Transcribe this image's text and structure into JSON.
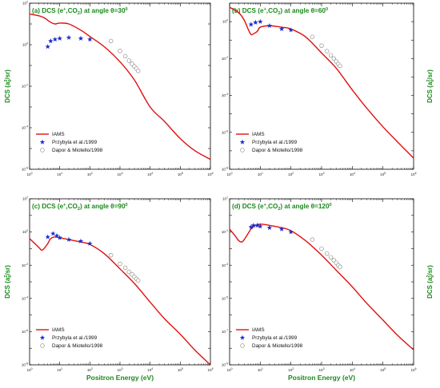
{
  "figure": {
    "xlabel": "Positron Energy (eV)",
    "ylabel_left": "DCS (a",
    "ylabel_sub": "0",
    "ylabel_sup": "2",
    "ylabel_end": "/sr)"
  },
  "legend": {
    "iams": "IAMS",
    "przybyla": "Przybyla et al./1999",
    "dapor": "Dapor & Miotello/1998"
  },
  "colors": {
    "iams": "#e01010",
    "przybyla": "#1a2fcf",
    "dapor": "#888888",
    "label": "#1a8a1a"
  },
  "chart_data": [
    {
      "type": "line",
      "title": "(a) DCS (e+,CO2) at angle θ=30°",
      "title_parts": {
        "pre": "(a) DCS (e",
        "sup1": "+",
        "mid": ",CO",
        "sub": "2",
        "post": ") at angle θ=30",
        "deg": "0"
      },
      "xscale": "log",
      "yscale": "log",
      "xlim": [
        1,
        1000000
      ],
      "ylim": [
        1e-06,
        100
      ],
      "x_ticks": [
        "10^0",
        "10^1",
        "10^2",
        "10^3",
        "10^4",
        "10^5",
        "10^6"
      ],
      "y_ticks": [
        "10^-6",
        "10^-4",
        "10^-2",
        "10^0",
        "10^2"
      ],
      "series": [
        {
          "name": "IAMS",
          "kind": "line",
          "x": [
            1,
            2,
            3,
            5,
            7,
            10,
            20,
            50,
            100,
            300,
            1000,
            3000,
            10000,
            30000,
            100000,
            300000,
            1000000
          ],
          "y": [
            30,
            25,
            20,
            12,
            10,
            11,
            10,
            5,
            2.5,
            0.8,
            0.15,
            0.02,
            0.001,
            0.0002,
            3e-05,
            8e-06,
            3e-06
          ]
        },
        {
          "name": "Przybyla et al./1999",
          "kind": "star",
          "x": [
            4,
            5,
            7,
            10,
            20,
            50,
            100
          ],
          "y": [
            0.8,
            1.5,
            1.8,
            2.0,
            2.2,
            2.0,
            1.8
          ]
        },
        {
          "name": "Dapor & Miotello/1998",
          "kind": "circle",
          "x": [
            500,
            1000,
            1500,
            2000,
            2500,
            3000,
            3500,
            4000
          ],
          "y": [
            1.5,
            0.5,
            0.28,
            0.17,
            0.12,
            0.09,
            0.07,
            0.055
          ]
        }
      ]
    },
    {
      "type": "line",
      "title": "(b) DCS (e+,CO2) at angle θ=60°",
      "title_parts": {
        "pre": "(b) DCS (e",
        "sup1": "+",
        "mid": ",CO",
        "sub": "2",
        "post": ") at angle θ=60",
        "deg": "0"
      },
      "xscale": "log",
      "yscale": "log",
      "xlim": [
        1,
        1000000
      ],
      "ylim": [
        1e-08,
        10
      ],
      "x_ticks": [
        "10^0",
        "10^1",
        "10^2",
        "10^3",
        "10^4",
        "10^5",
        "10^6"
      ],
      "y_ticks": [
        "10^-8",
        "10^-6",
        "10^-4",
        "10^-2",
        "10^0"
      ],
      "series": [
        {
          "name": "IAMS",
          "kind": "line",
          "x": [
            1,
            2,
            3,
            4,
            5,
            6,
            8,
            10,
            20,
            50,
            100,
            300,
            1000,
            3000,
            10000,
            30000,
            100000,
            300000,
            1000000
          ],
          "y": [
            6,
            3,
            1.2,
            0.4,
            0.2,
            0.22,
            0.3,
            0.5,
            0.6,
            0.5,
            0.4,
            0.15,
            0.02,
            0.003,
            0.0002,
            2e-05,
            2e-06,
            3e-07,
            4e-08
          ]
        },
        {
          "name": "Przybyla et al./1999",
          "kind": "star",
          "x": [
            5,
            7,
            10,
            20,
            50,
            100
          ],
          "y": [
            0.7,
            0.9,
            1.0,
            0.6,
            0.4,
            0.35
          ]
        },
        {
          "name": "Dapor & Miotello/1998",
          "kind": "circle",
          "x": [
            500,
            1000,
            1500,
            2000,
            2500,
            3000,
            3500,
            4000
          ],
          "y": [
            0.15,
            0.05,
            0.025,
            0.015,
            0.01,
            0.007,
            0.005,
            0.004
          ]
        }
      ]
    },
    {
      "type": "line",
      "title": "(c) DCS (e+,CO2) at angle θ=90°",
      "title_parts": {
        "pre": "(c) DCS (e",
        "sup1": "+",
        "mid": ",CO",
        "sub": "2",
        "post": ") at angle θ=90",
        "deg": "0"
      },
      "xscale": "log",
      "yscale": "log",
      "xlim": [
        1,
        1000000
      ],
      "ylim": [
        1e-08,
        100
      ],
      "x_ticks": [
        "10^0",
        "10^1",
        "10^2",
        "10^3",
        "10^4",
        "10^5",
        "10^6"
      ],
      "y_ticks": [
        "10^-8",
        "10^-6",
        "10^-4",
        "10^-2",
        "10^0",
        "10^2"
      ],
      "series": [
        {
          "name": "IAMS",
          "kind": "line",
          "x": [
            1,
            2,
            2.5,
            3,
            4,
            5,
            7,
            10,
            20,
            50,
            100,
            300,
            1000,
            3000,
            10000,
            30000,
            100000,
            300000,
            1000000
          ],
          "y": [
            0.4,
            0.12,
            0.08,
            0.1,
            0.2,
            0.4,
            0.5,
            0.45,
            0.35,
            0.25,
            0.18,
            0.05,
            0.006,
            0.0008,
            6e-05,
            6e-06,
            7e-07,
            8e-08,
            1e-08
          ]
        },
        {
          "name": "Przybyla et al./1999",
          "kind": "star",
          "x": [
            4,
            6,
            8,
            10,
            20,
            50,
            100
          ],
          "y": [
            0.5,
            0.8,
            0.6,
            0.45,
            0.35,
            0.28,
            0.2
          ]
        },
        {
          "name": "Dapor & Miotello/1998",
          "kind": "circle",
          "x": [
            500,
            1000,
            1500,
            2000,
            2500,
            3000,
            3500,
            4000
          ],
          "y": [
            0.04,
            0.012,
            0.007,
            0.004,
            0.0028,
            0.002,
            0.0015,
            0.0012
          ]
        }
      ]
    },
    {
      "type": "line",
      "title": "(d) DCS (e+,CO2) at angle θ=120°",
      "title_parts": {
        "pre": "(d) DCS (e",
        "sup1": "+",
        "mid": ",CO",
        "sub": "2",
        "post": ") at angle θ=120",
        "deg": "0"
      },
      "xscale": "log",
      "yscale": "log",
      "xlim": [
        1,
        1000000
      ],
      "ylim": [
        1e-09,
        10
      ],
      "x_ticks": [
        "10^0",
        "10^1",
        "10^2",
        "10^3",
        "10^4",
        "10^5",
        "10^6"
      ],
      "y_ticks": [
        "10^-9",
        "10^-7",
        "10^-5",
        "10^-3",
        "10^-1",
        "10^1"
      ],
      "series": [
        {
          "name": "IAMS",
          "kind": "line",
          "x": [
            1,
            1.5,
            2,
            2.5,
            3,
            4,
            5,
            7,
            10,
            20,
            50,
            100,
            300,
            1000,
            3000,
            10000,
            30000,
            100000,
            300000,
            1000000
          ],
          "y": [
            0.15,
            0.06,
            0.03,
            0.025,
            0.035,
            0.08,
            0.15,
            0.25,
            0.3,
            0.25,
            0.18,
            0.12,
            0.03,
            0.004,
            0.0005,
            5e-05,
            5e-06,
            5e-07,
            6e-08,
            8e-09
          ]
        },
        {
          "name": "Przybyla et al./1999",
          "kind": "star",
          "x": [
            5,
            6,
            8,
            10,
            20,
            50,
            100
          ],
          "y": [
            0.2,
            0.25,
            0.25,
            0.22,
            0.18,
            0.15,
            0.1
          ]
        },
        {
          "name": "Dapor & Miotello/1998",
          "kind": "circle",
          "x": [
            500,
            1000,
            1500,
            2000,
            2500,
            3000,
            3500,
            4000
          ],
          "y": [
            0.035,
            0.01,
            0.005,
            0.003,
            0.002,
            0.0014,
            0.001,
            0.0008
          ]
        }
      ]
    }
  ]
}
